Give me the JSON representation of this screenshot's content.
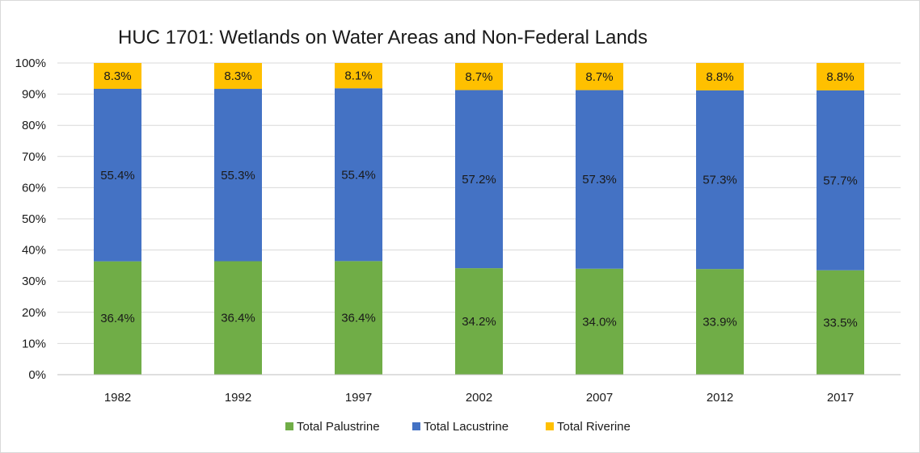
{
  "chart_data": {
    "type": "bar",
    "stacked": true,
    "percent_stacked": true,
    "title": "HUC 1701: Wetlands on Water Areas and Non-Federal Lands",
    "categories": [
      "1982",
      "1992",
      "1997",
      "2002",
      "2007",
      "2012",
      "2017"
    ],
    "series": [
      {
        "name": "Total Palustrine",
        "color": "#70ad47",
        "values": [
          36.4,
          36.4,
          36.4,
          34.2,
          34.0,
          33.9,
          33.5
        ],
        "labels": [
          "36.4%",
          "36.4%",
          "36.4%",
          "34.2%",
          "34.0%",
          "33.9%",
          "33.5%"
        ]
      },
      {
        "name": "Total Lacustrine",
        "color": "#4472c4",
        "values": [
          55.4,
          55.3,
          55.4,
          57.2,
          57.3,
          57.3,
          57.7
        ],
        "labels": [
          "55.4%",
          "55.3%",
          "55.4%",
          "57.2%",
          "57.3%",
          "57.3%",
          "57.7%"
        ]
      },
      {
        "name": "Total Riverine",
        "color": "#ffc000",
        "values": [
          8.3,
          8.3,
          8.1,
          8.7,
          8.7,
          8.8,
          8.8
        ],
        "labels": [
          "8.3%",
          "8.3%",
          "8.1%",
          "8.7%",
          "8.7%",
          "8.8%",
          "8.8%"
        ]
      }
    ],
    "ylim": [
      0,
      100
    ],
    "yticks": [
      "0%",
      "10%",
      "20%",
      "30%",
      "40%",
      "50%",
      "60%",
      "70%",
      "80%",
      "90%",
      "100%"
    ],
    "grid": true,
    "legend_position": "bottom"
  }
}
